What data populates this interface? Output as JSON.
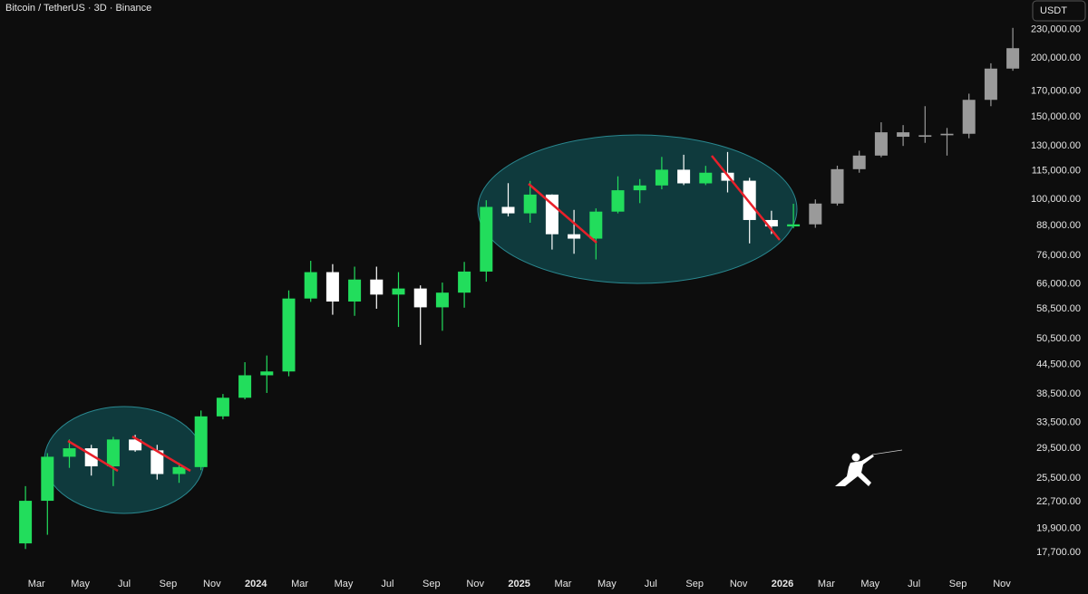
{
  "chart_data": {
    "type": "candlestick",
    "title": "Bitcoin / TetherUS · 3D · Binance",
    "currency": "USDT",
    "log_scale": true,
    "grid": false,
    "ylim": [
      16200,
      266000
    ],
    "yticks": [
      {
        "value": 230000,
        "label": "230,000.00"
      },
      {
        "value": 200000,
        "label": "200,000.00"
      },
      {
        "value": 170000,
        "label": "170,000.00"
      },
      {
        "value": 150000,
        "label": "150,000.00"
      },
      {
        "value": 130000,
        "label": "130,000.00"
      },
      {
        "value": 115000,
        "label": "115,000.00"
      },
      {
        "value": 100000,
        "label": "100,000.00"
      },
      {
        "value": 88000,
        "label": "88,000.00"
      },
      {
        "value": 76000,
        "label": "76,000.00"
      },
      {
        "value": 66000,
        "label": "66,000.00"
      },
      {
        "value": 58500,
        "label": "58,500.00"
      },
      {
        "value": 50500,
        "label": "50,500.00"
      },
      {
        "value": 44500,
        "label": "44,500.00"
      },
      {
        "value": 38500,
        "label": "38,500.00"
      },
      {
        "value": 33500,
        "label": "33,500.00"
      },
      {
        "value": 29500,
        "label": "29,500.00"
      },
      {
        "value": 25500,
        "label": "25,500.00"
      },
      {
        "value": 22700,
        "label": "22,700.00"
      },
      {
        "value": 19900,
        "label": "19,900.00"
      },
      {
        "value": 17700,
        "label": "17,700.00"
      }
    ],
    "xticks": [
      {
        "value": "2023-03",
        "label": "Mar"
      },
      {
        "value": "2023-05",
        "label": "May"
      },
      {
        "value": "2023-07",
        "label": "Jul"
      },
      {
        "value": "2023-09",
        "label": "Sep"
      },
      {
        "value": "2023-11",
        "label": "Nov"
      },
      {
        "value": "2024-01",
        "label": "2024"
      },
      {
        "value": "2024-03",
        "label": "Mar"
      },
      {
        "value": "2024-05",
        "label": "May"
      },
      {
        "value": "2024-07",
        "label": "Jul"
      },
      {
        "value": "2024-09",
        "label": "Sep"
      },
      {
        "value": "2024-11",
        "label": "Nov"
      },
      {
        "value": "2025-01",
        "label": "2025"
      },
      {
        "value": "2025-03",
        "label": "Mar"
      },
      {
        "value": "2025-05",
        "label": "May"
      },
      {
        "value": "2025-07",
        "label": "Jul"
      },
      {
        "value": "2025-09",
        "label": "Sep"
      },
      {
        "value": "2025-11",
        "label": "Nov"
      },
      {
        "value": "2026-01",
        "label": "2026"
      },
      {
        "value": "2026-03",
        "label": "Mar"
      },
      {
        "value": "2026-05",
        "label": "May"
      },
      {
        "value": "2026-07",
        "label": "Jul"
      },
      {
        "value": "2026-09",
        "label": "Sep"
      },
      {
        "value": "2026-11",
        "label": "Nov"
      }
    ],
    "series": [
      {
        "up_color": "#22dd5c",
        "down_color": "#ffffff",
        "x": [
          "2023-02",
          "2023-03",
          "2023-04",
          "2023-05",
          "2023-06",
          "2023-07",
          "2023-08",
          "2023-09",
          "2023-10",
          "2023-11",
          "2023-12",
          "2024-01",
          "2024-02",
          "2024-03",
          "2024-04",
          "2024-05",
          "2024-06",
          "2024-07",
          "2024-08",
          "2024-09",
          "2024-10",
          "2024-11",
          "2024-12",
          "2025-01",
          "2025-02",
          "2025-03",
          "2025-04",
          "2025-05",
          "2025-06",
          "2025-07",
          "2025-08",
          "2025-09",
          "2025-10",
          "2025-11",
          "2025-12",
          "2026-01"
        ],
        "open": [
          18500,
          22800,
          28300,
          29500,
          27000,
          30800,
          29200,
          26000,
          26900,
          34500,
          37800,
          42200,
          43000,
          61500,
          70000,
          60600,
          67500,
          62700,
          64600,
          58900,
          63300,
          70200,
          96400,
          93400,
          102400,
          84300,
          82500,
          94200,
          104600,
          107100,
          115700,
          108200,
          114000,
          109600,
          90400,
          87600
        ],
        "high": [
          24500,
          28800,
          30800,
          30000,
          31200,
          31500,
          30000,
          27500,
          35500,
          38500,
          45000,
          46500,
          64000,
          74000,
          72800,
          71900,
          71900,
          70000,
          65600,
          66500,
          73600,
          99600,
          108300,
          109500,
          102500,
          95000,
          95700,
          112000,
          110500,
          123200,
          124500,
          117900,
          126200,
          111200,
          94600,
          97900
        ],
        "low": [
          18000,
          19300,
          26800,
          25800,
          24500,
          29000,
          25300,
          24900,
          26500,
          34000,
          37500,
          38700,
          42000,
          60500,
          56800,
          56500,
          58500,
          53500,
          49000,
          52500,
          58800,
          66800,
          92000,
          89200,
          78200,
          76600,
          74500,
          93400,
          98200,
          105100,
          107300,
          107300,
          103500,
          80600,
          84400,
          86800
        ],
        "close": [
          22800,
          28300,
          29500,
          27000,
          30800,
          29200,
          26000,
          26900,
          34500,
          37800,
          42200,
          43000,
          61500,
          70000,
          60600,
          67500,
          62700,
          64600,
          58900,
          63300,
          70200,
          96400,
          93400,
          102400,
          84300,
          82500,
          94200,
          104600,
          107100,
          115700,
          108200,
          114000,
          109600,
          90400,
          87600,
          88500
        ]
      },
      {
        "color": "#9a9a9a",
        "x": [
          "2026-02",
          "2026-03",
          "2026-04",
          "2026-05",
          "2026-06",
          "2026-07",
          "2026-08",
          "2026-09",
          "2026-10",
          "2026-11"
        ],
        "open": [
          88500,
          98000,
          116000,
          124000,
          139000,
          136000,
          137000,
          138000,
          163000,
          190000
        ],
        "high": [
          100000,
          118000,
          127000,
          146000,
          144000,
          158000,
          142000,
          168000,
          195000,
          232000
        ],
        "low": [
          87000,
          97000,
          114000,
          123000,
          130000,
          132000,
          124000,
          135000,
          158000,
          188000
        ],
        "close": [
          98000,
          116000,
          124000,
          139000,
          136000,
          137000,
          138000,
          163000,
          190000,
          210000
        ]
      }
    ]
  }
}
